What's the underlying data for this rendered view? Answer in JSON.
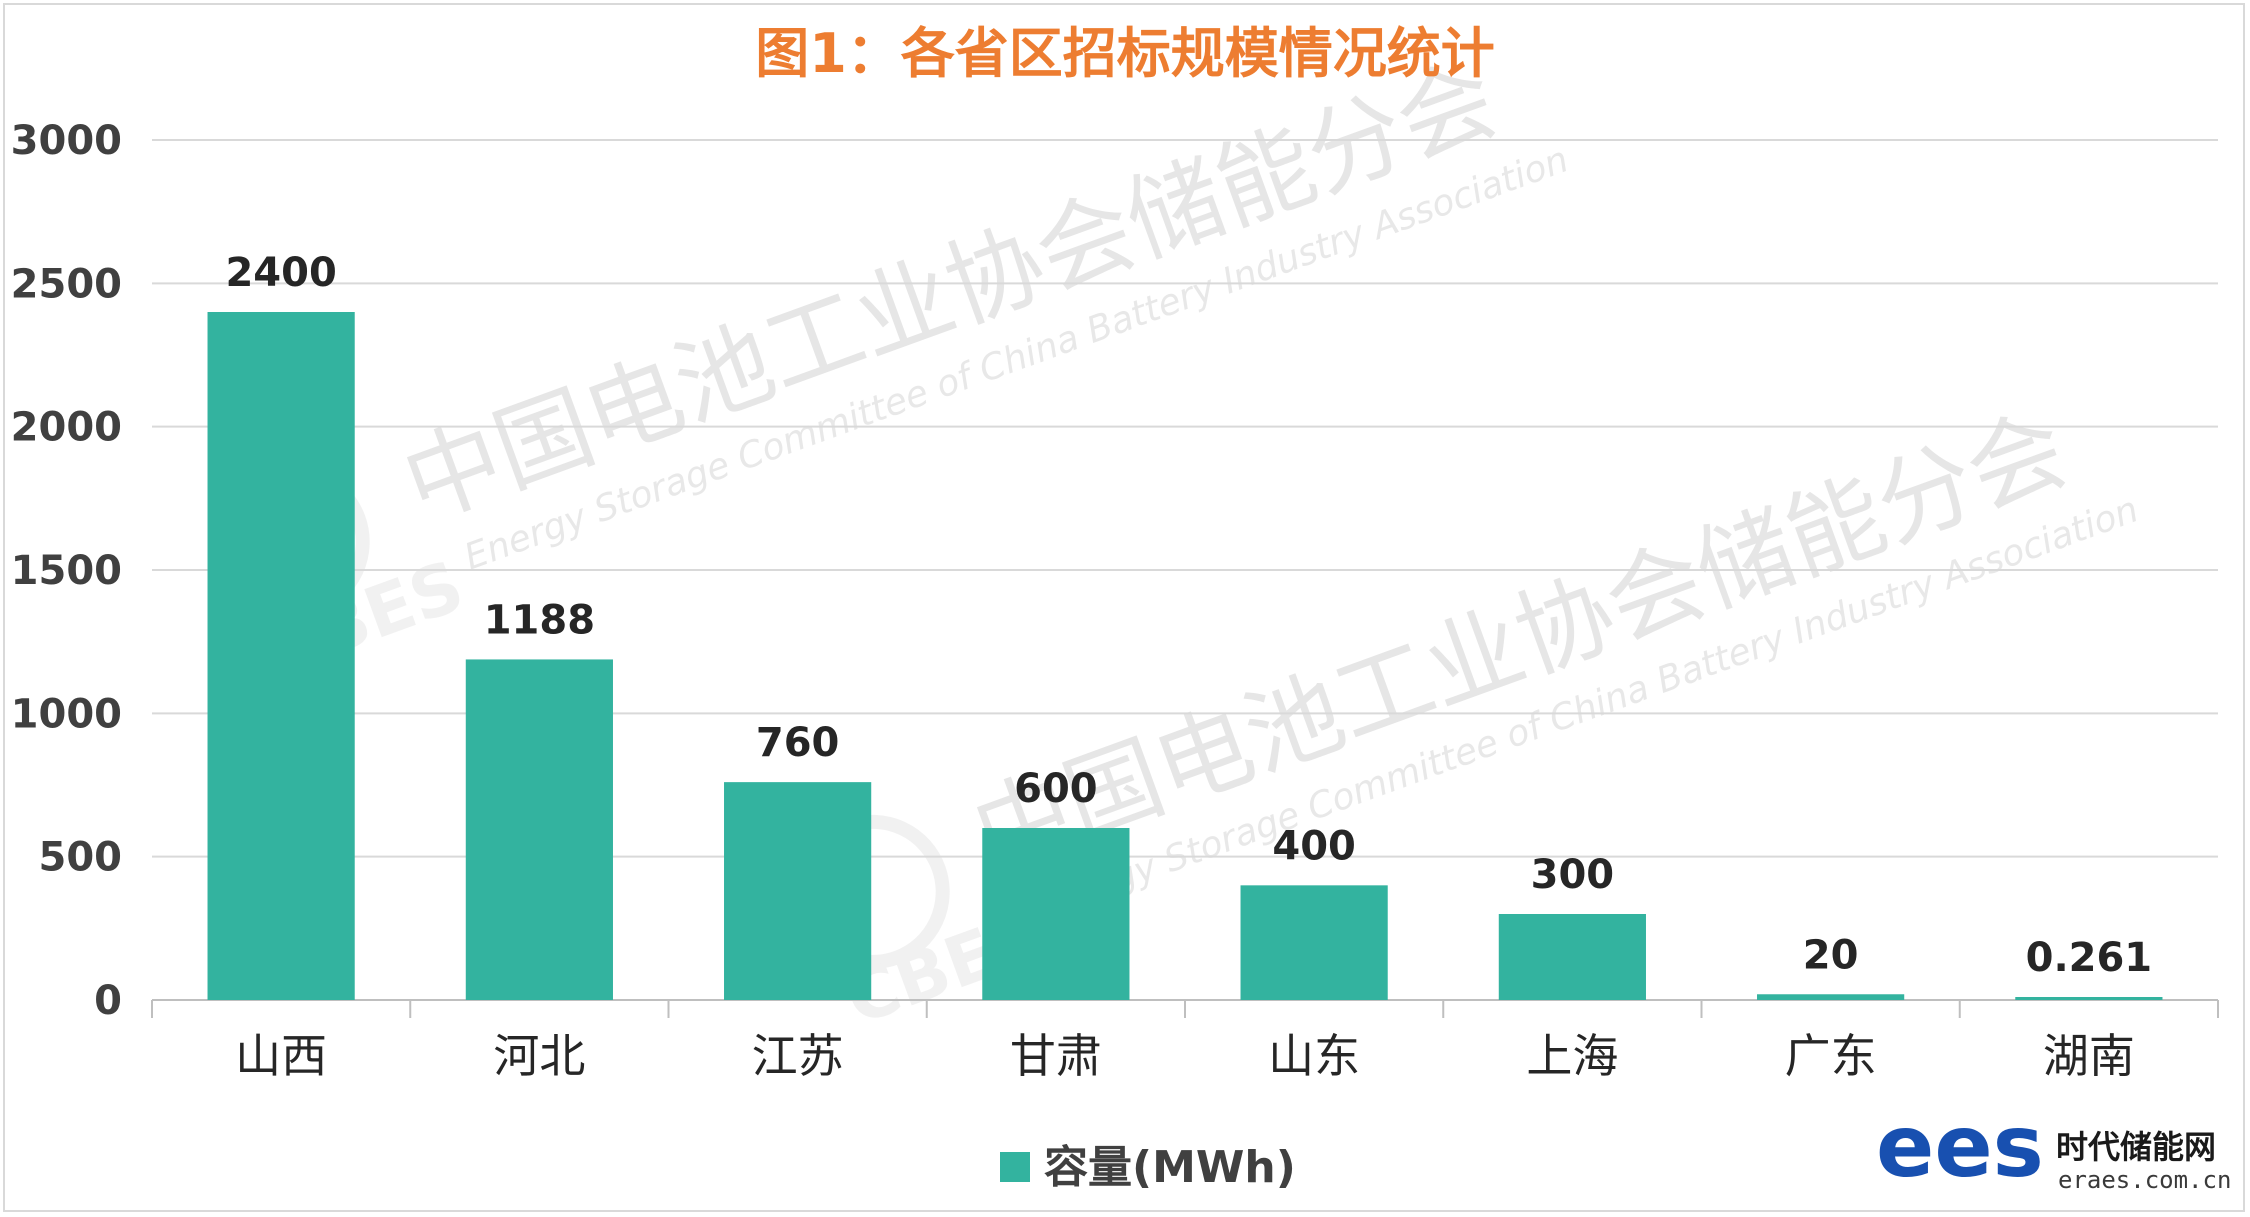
{
  "chart_data": {
    "type": "bar",
    "title": "图1：各省区招标规模情况统计",
    "categories": [
      "山西",
      "河北",
      "江苏",
      "甘肃",
      "山东",
      "上海",
      "广东",
      "湖南"
    ],
    "series": [
      {
        "name": "容量(MWh)",
        "values": [
          2400,
          1188,
          760,
          600,
          400,
          300,
          20,
          0.261
        ],
        "color": "#33b39f"
      }
    ],
    "data_labels": [
      "2400",
      "1188",
      "760",
      "600",
      "400",
      "300",
      "20",
      "0.261"
    ],
    "ylim": [
      0,
      3000
    ],
    "yticks": [
      0,
      500,
      1000,
      1500,
      2000,
      2500,
      3000
    ],
    "grid": true,
    "legend_position": "bottom"
  },
  "watermark": {
    "cn": "中国电池工业协会储能分会",
    "en": "Energy Storage Committee of China Battery Industry Association",
    "mark": "CBES"
  },
  "logo": {
    "mark": "ees",
    "cn": "时代储能网",
    "url": "eraes.com.cn",
    "color": "#1850b0"
  }
}
